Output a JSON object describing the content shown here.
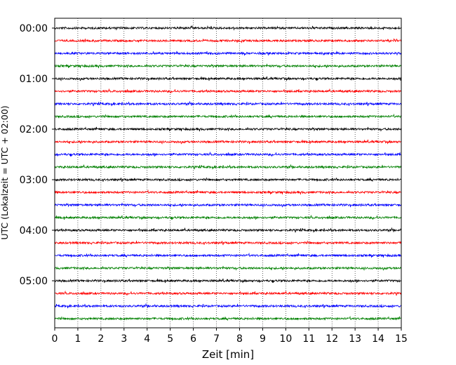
{
  "chart_data": {
    "type": "line",
    "title": "",
    "xlabel": "Zeit  [min]",
    "ylabel": "UTC (Lokalzeit = UTC + 02:00)",
    "xlim": [
      0,
      15
    ],
    "x_ticks": [
      0,
      1,
      2,
      3,
      4,
      5,
      6,
      7,
      8,
      9,
      10,
      11,
      12,
      13,
      14,
      15
    ],
    "x_grid": true,
    "trace_interval_minutes": 15,
    "y_ticks": [
      {
        "label": "00:00",
        "trace_index": 0
      },
      {
        "label": "01:00",
        "trace_index": 4
      },
      {
        "label": "02:00",
        "trace_index": 8
      },
      {
        "label": "03:00",
        "trace_index": 12
      },
      {
        "label": "04:00",
        "trace_index": 16
      },
      {
        "label": "05:00",
        "trace_index": 20
      }
    ],
    "trace_colors": [
      "#000000",
      "#ff0000",
      "#0000ff",
      "#008000"
    ],
    "traces": [
      {
        "start": "00:00"
      },
      {
        "start": "00:15"
      },
      {
        "start": "00:30"
      },
      {
        "start": "00:45"
      },
      {
        "start": "01:00"
      },
      {
        "start": "01:15"
      },
      {
        "start": "01:30"
      },
      {
        "start": "01:45"
      },
      {
        "start": "02:00"
      },
      {
        "start": "02:15"
      },
      {
        "start": "02:30"
      },
      {
        "start": "02:45"
      },
      {
        "start": "03:00"
      },
      {
        "start": "03:15"
      },
      {
        "start": "03:30"
      },
      {
        "start": "03:45"
      },
      {
        "start": "04:00"
      },
      {
        "start": "04:15"
      },
      {
        "start": "04:30"
      },
      {
        "start": "04:45"
      },
      {
        "start": "05:00"
      },
      {
        "start": "05:15"
      },
      {
        "start": "05:30"
      },
      {
        "start": "05:45"
      }
    ]
  }
}
